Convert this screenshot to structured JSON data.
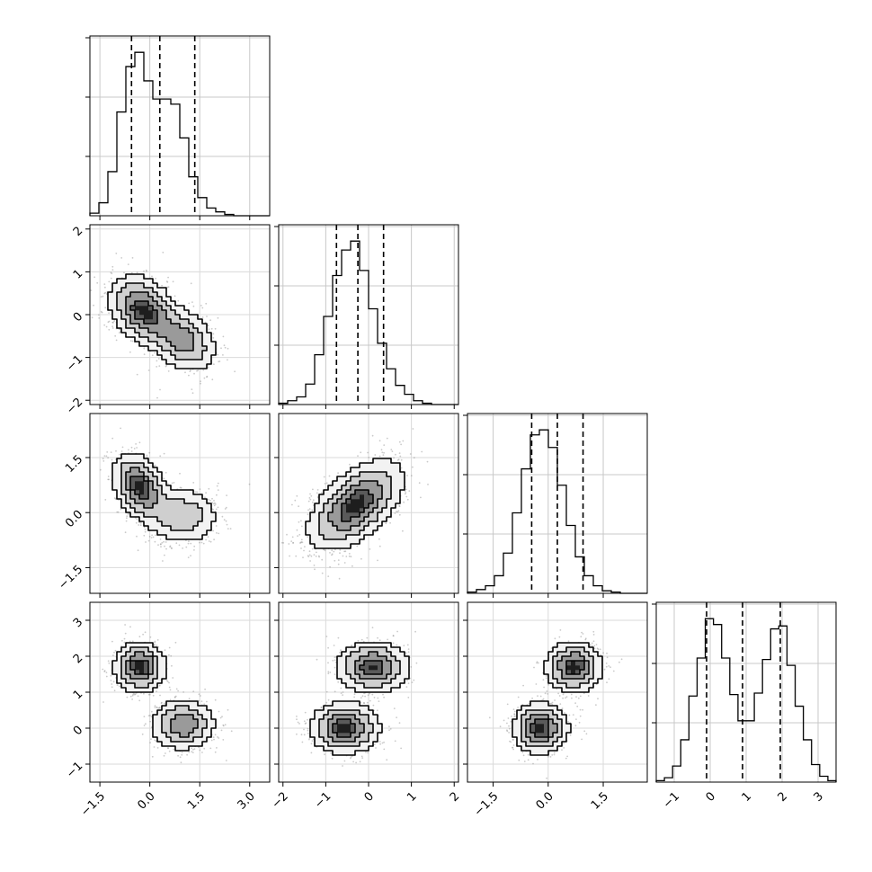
{
  "chart_data": {
    "type": "corner",
    "dimensions": 4,
    "grid": true,
    "histogram_color": "#000000",
    "contour_color": "#000000",
    "scatter_color": "#808080",
    "axes_ranges": [
      [
        -1.8,
        3.6
      ],
      [
        -2.1,
        2.1
      ],
      [
        -2.2,
        2.7
      ],
      [
        -1.5,
        3.5
      ]
    ],
    "tick_values": [
      [
        -1.5,
        0.0,
        1.5,
        3.0
      ],
      [
        -2,
        -1,
        0,
        1,
        2
      ],
      [
        -1.5,
        0.0,
        1.5
      ],
      [
        -1,
        0,
        1,
        2,
        3
      ]
    ],
    "tick_labels": [
      [
        "−1.5",
        "0.0",
        "1.5",
        "3.0"
      ],
      [
        "−2",
        "−1",
        "0",
        "1",
        "2"
      ],
      [
        "−1.5",
        "0.0",
        "1.5"
      ],
      [
        "−1",
        "0",
        "1",
        "2",
        "3"
      ]
    ],
    "quantiles": [
      [
        -0.55,
        0.3,
        1.35
      ],
      [
        -0.75,
        -0.25,
        0.35
      ],
      [
        -0.45,
        0.25,
        0.95
      ],
      [
        -0.1,
        0.9,
        1.95
      ]
    ],
    "histograms": [
      {
        "edges_range": [
          -1.8,
          3.6
        ],
        "bins": 20,
        "counts": [
          2,
          10,
          34,
          80,
          115,
          126,
          104,
          90,
          90,
          86,
          60,
          30,
          14,
          6,
          3,
          1,
          0,
          0,
          0,
          0
        ]
      },
      {
        "edges_range": [
          -2.1,
          2.1
        ],
        "bins": 20,
        "counts": [
          1,
          3,
          6,
          16,
          39,
          69,
          101,
          121,
          128,
          105,
          75,
          48,
          28,
          15,
          8,
          3,
          1,
          0,
          0,
          0
        ]
      },
      {
        "edges_range": [
          -2.2,
          2.7
        ],
        "bins": 20,
        "counts": [
          1,
          3,
          6,
          14,
          32,
          64,
          99,
          126,
          130,
          116,
          86,
          54,
          29,
          14,
          6,
          2,
          1,
          0,
          0,
          0
        ]
      },
      {
        "edges_range": [
          -1.5,
          3.5
        ],
        "bins": 22,
        "counts": [
          1,
          3,
          11,
          29,
          59,
          85,
          112,
          108,
          85,
          60,
          42,
          42,
          61,
          84,
          105,
          107,
          80,
          52,
          29,
          12,
          4,
          1
        ]
      }
    ],
    "bivariate": [
      {
        "x": 0,
        "y": 1,
        "modes": [
          {
            "mean": [
              -0.2,
              0.1
            ],
            "sd": [
              0.5,
              0.4
            ],
            "rho": -0.3,
            "w": 0.6
          },
          {
            "mean": [
              1.0,
              -0.6
            ],
            "sd": [
              0.5,
              0.38
            ],
            "rho": -0.3,
            "w": 0.4
          }
        ]
      },
      {
        "x": 0,
        "y": 2,
        "modes": [
          {
            "mean": [
              -0.3,
              0.7
            ],
            "sd": [
              0.4,
              0.45
            ],
            "rho": -0.35,
            "w": 0.6
          },
          {
            "mean": [
              1.0,
              -0.1
            ],
            "sd": [
              0.55,
              0.4
            ],
            "rho": 0.0,
            "w": 0.4
          }
        ]
      },
      {
        "x": 1,
        "y": 2,
        "modes": [
          {
            "mean": [
              -0.3,
              0.2
            ],
            "sd": [
              0.55,
              0.6
            ],
            "rho": 0.55,
            "w": 1.0
          }
        ]
      },
      {
        "x": 0,
        "y": 3,
        "modes": [
          {
            "mean": [
              -0.3,
              1.7
            ],
            "sd": [
              0.38,
              0.35
            ],
            "rho": 0.0,
            "w": 0.5
          },
          {
            "mean": [
              1.0,
              0.1
            ],
            "sd": [
              0.48,
              0.35
            ],
            "rho": 0.0,
            "w": 0.5
          }
        ]
      },
      {
        "x": 1,
        "y": 3,
        "modes": [
          {
            "mean": [
              -0.55,
              0.0
            ],
            "sd": [
              0.4,
              0.35
            ],
            "rho": 0.0,
            "w": 0.5
          },
          {
            "mean": [
              0.1,
              1.7
            ],
            "sd": [
              0.42,
              0.35
            ],
            "rho": 0.0,
            "w": 0.5
          }
        ]
      },
      {
        "x": 2,
        "y": 3,
        "modes": [
          {
            "mean": [
              -0.2,
              0.0
            ],
            "sd": [
              0.38,
              0.35
            ],
            "rho": 0.0,
            "w": 0.5
          },
          {
            "mean": [
              0.7,
              1.7
            ],
            "sd": [
              0.38,
              0.35
            ],
            "rho": 0.0,
            "w": 0.5
          }
        ]
      }
    ],
    "contour_levels": [
      0.12,
      0.3,
      0.55,
      0.8
    ]
  }
}
